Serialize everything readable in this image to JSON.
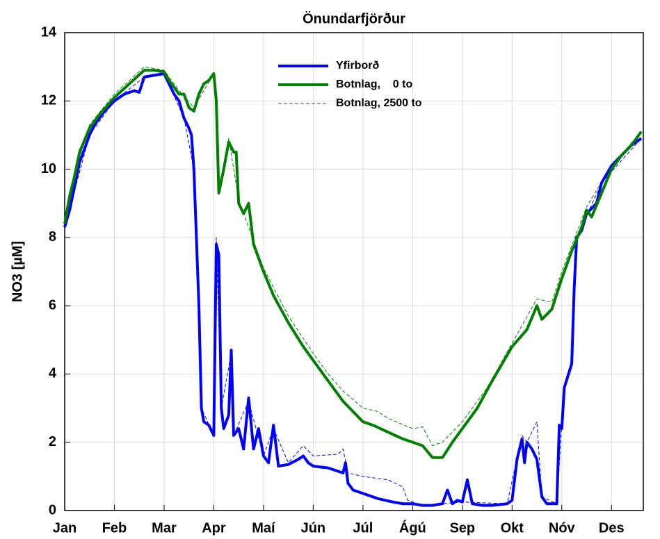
{
  "chart_data": {
    "type": "line",
    "title": "Önundarfjörður",
    "ylabel": "NO3 [µM]",
    "xlim": [
      0,
      11.64
    ],
    "ylim": [
      0,
      14
    ],
    "xticks": [
      {
        "value": 0,
        "label": "Jan"
      },
      {
        "value": 1,
        "label": "Feb"
      },
      {
        "value": 2,
        "label": "Mar"
      },
      {
        "value": 3,
        "label": "Apr"
      },
      {
        "value": 4,
        "label": "Maí"
      },
      {
        "value": 5,
        "label": "Jún"
      },
      {
        "value": 6,
        "label": "Júl"
      },
      {
        "value": 7,
        "label": "Ágú"
      },
      {
        "value": 8,
        "label": "Sep"
      },
      {
        "value": 9,
        "label": "Okt"
      },
      {
        "value": 10,
        "label": "Nóv"
      },
      {
        "value": 11,
        "label": "Des"
      }
    ],
    "yticks": [
      0,
      2,
      4,
      6,
      8,
      10,
      12,
      14
    ],
    "grid": true,
    "legend": "top",
    "series": [
      {
        "name": "Yfirborð",
        "color": "#0000ff",
        "linewidth": 4,
        "dashed": false,
        "x": [
          0,
          0.1,
          0.2,
          0.3,
          0.4,
          0.5,
          0.6,
          0.8,
          1.0,
          1.2,
          1.4,
          1.5,
          1.6,
          1.8,
          2.0,
          2.1,
          2.2,
          2.3,
          2.4,
          2.5,
          2.55,
          2.6,
          2.7,
          2.75,
          2.8,
          2.9,
          3.0,
          3.05,
          3.1,
          3.15,
          3.2,
          3.3,
          3.35,
          3.4,
          3.5,
          3.6,
          3.7,
          3.8,
          3.9,
          4.0,
          4.1,
          4.2,
          4.3,
          4.5,
          4.7,
          4.8,
          4.9,
          5.0,
          5.3,
          5.5,
          5.6,
          5.65,
          5.7,
          5.8,
          6.0,
          6.3,
          6.6,
          6.8,
          7.0,
          7.2,
          7.4,
          7.6,
          7.7,
          7.8,
          7.9,
          8.0,
          8.1,
          8.2,
          8.4,
          8.6,
          8.9,
          9.0,
          9.1,
          9.2,
          9.25,
          9.3,
          9.4,
          9.5,
          9.6,
          9.7,
          9.9,
          9.95,
          10.0,
          10.05,
          10.2,
          10.25,
          10.3,
          10.4,
          10.5,
          10.7,
          10.8,
          11.0,
          11.2,
          11.4,
          11.6
        ],
        "values": [
          8.3,
          8.8,
          9.5,
          10.2,
          10.6,
          11.0,
          11.3,
          11.7,
          12.0,
          12.2,
          12.3,
          12.25,
          12.7,
          12.75,
          12.8,
          12.5,
          12.2,
          12.0,
          11.5,
          11.2,
          11.0,
          10.0,
          6.0,
          3.0,
          2.6,
          2.5,
          2.2,
          7.8,
          7.5,
          3.0,
          2.4,
          2.8,
          4.7,
          2.2,
          2.4,
          1.8,
          3.3,
          1.8,
          2.4,
          1.6,
          1.4,
          2.5,
          1.3,
          1.35,
          1.5,
          1.6,
          1.4,
          1.3,
          1.25,
          1.15,
          1.1,
          1.4,
          0.8,
          0.6,
          0.5,
          0.35,
          0.25,
          0.2,
          0.2,
          0.15,
          0.15,
          0.2,
          0.6,
          0.2,
          0.3,
          0.25,
          0.9,
          0.2,
          0.15,
          0.15,
          0.2,
          0.3,
          1.5,
          2.1,
          1.4,
          2.0,
          1.8,
          1.5,
          0.4,
          0.2,
          0.2,
          2.5,
          2.4,
          3.6,
          4.3,
          6.5,
          8.0,
          8.2,
          8.7,
          9.0,
          9.6,
          10.1,
          10.4,
          10.7,
          10.9
        ]
      },
      {
        "name": "Botnlag,    0 to",
        "color": "#008000",
        "linewidth": 4,
        "dashed": false,
        "x": [
          0,
          0.1,
          0.2,
          0.3,
          0.5,
          0.7,
          1.0,
          1.3,
          1.6,
          1.8,
          2.0,
          2.1,
          2.2,
          2.3,
          2.4,
          2.5,
          2.6,
          2.7,
          2.8,
          2.9,
          3.0,
          3.05,
          3.1,
          3.2,
          3.3,
          3.4,
          3.45,
          3.5,
          3.6,
          3.7,
          3.8,
          4.0,
          4.2,
          4.5,
          4.8,
          5.0,
          5.3,
          5.6,
          5.8,
          6.0,
          6.2,
          6.5,
          6.8,
          7.0,
          7.2,
          7.4,
          7.6,
          7.8,
          8.0,
          8.3,
          8.6,
          9.0,
          9.3,
          9.5,
          9.6,
          9.8,
          10.0,
          10.2,
          10.4,
          10.5,
          10.6,
          10.8,
          11.0,
          11.2,
          11.4,
          11.6
        ],
        "values": [
          8.4,
          9.2,
          9.8,
          10.5,
          11.2,
          11.6,
          12.1,
          12.5,
          12.9,
          12.9,
          12.85,
          12.6,
          12.4,
          12.2,
          12.2,
          11.8,
          11.7,
          12.2,
          12.5,
          12.6,
          12.8,
          12.0,
          9.3,
          10.0,
          10.8,
          10.5,
          10.5,
          9.0,
          8.7,
          9.0,
          7.8,
          7.0,
          6.3,
          5.5,
          4.8,
          4.4,
          3.8,
          3.2,
          2.9,
          2.6,
          2.5,
          2.3,
          2.1,
          2.0,
          1.9,
          1.55,
          1.55,
          2.0,
          2.4,
          3.0,
          3.8,
          4.8,
          5.3,
          6.0,
          5.6,
          5.9,
          6.8,
          7.6,
          8.3,
          8.8,
          8.6,
          9.3,
          10.0,
          10.4,
          10.7,
          11.1
        ]
      },
      {
        "name": "Botnlag, 2500 to",
        "color": "#008000",
        "linewidth": 1,
        "dashed": true,
        "x": [
          0,
          0.2,
          0.5,
          1.0,
          1.6,
          2.0,
          2.3,
          2.6,
          3.0,
          3.05,
          3.1,
          3.3,
          3.5,
          3.8,
          4.0,
          4.5,
          5.0,
          5.3,
          5.6,
          6.0,
          6.3,
          6.5,
          7.0,
          7.2,
          7.4,
          7.6,
          8.0,
          8.5,
          9.0,
          9.5,
          9.8,
          10.0,
          10.5,
          11.0,
          11.6
        ],
        "values": [
          8.4,
          9.9,
          11.3,
          12.2,
          13.0,
          12.9,
          12.3,
          11.8,
          12.8,
          12.0,
          9.4,
          10.9,
          9.1,
          7.9,
          7.1,
          5.7,
          4.6,
          4.0,
          3.5,
          3.0,
          2.9,
          2.7,
          2.4,
          2.45,
          1.9,
          2.0,
          2.6,
          3.6,
          4.9,
          6.2,
          6.1,
          7.0,
          8.9,
          10.1,
          11.1
        ]
      },
      {
        "color": "#0000ff",
        "linewidth": 1,
        "dashed": true,
        "x": [
          0,
          0.5,
          1.0,
          1.6,
          2.0,
          2.4,
          2.6,
          2.75,
          3.0,
          3.05,
          3.15,
          3.35,
          3.4,
          3.7,
          4.0,
          4.2,
          4.5,
          4.8,
          5.0,
          5.5,
          5.6,
          5.7,
          6.0,
          6.5,
          6.8,
          6.9,
          7.2,
          8.0,
          8.9,
          9.2,
          9.3,
          9.5,
          9.6,
          9.9,
          10.05,
          10.2,
          10.3,
          10.8,
          11.6
        ],
        "values": [
          8.3,
          11.0,
          12.0,
          12.7,
          12.8,
          11.5,
          10.0,
          3.0,
          2.2,
          8.0,
          3.0,
          4.6,
          2.2,
          3.2,
          1.6,
          2.4,
          1.4,
          1.9,
          1.6,
          1.65,
          1.8,
          1.1,
          1.0,
          0.9,
          0.7,
          0.3,
          0.15,
          0.25,
          0.2,
          2.2,
          2.0,
          2.6,
          0.4,
          0.2,
          3.7,
          4.4,
          8.0,
          9.6,
          10.9
        ]
      }
    ]
  }
}
